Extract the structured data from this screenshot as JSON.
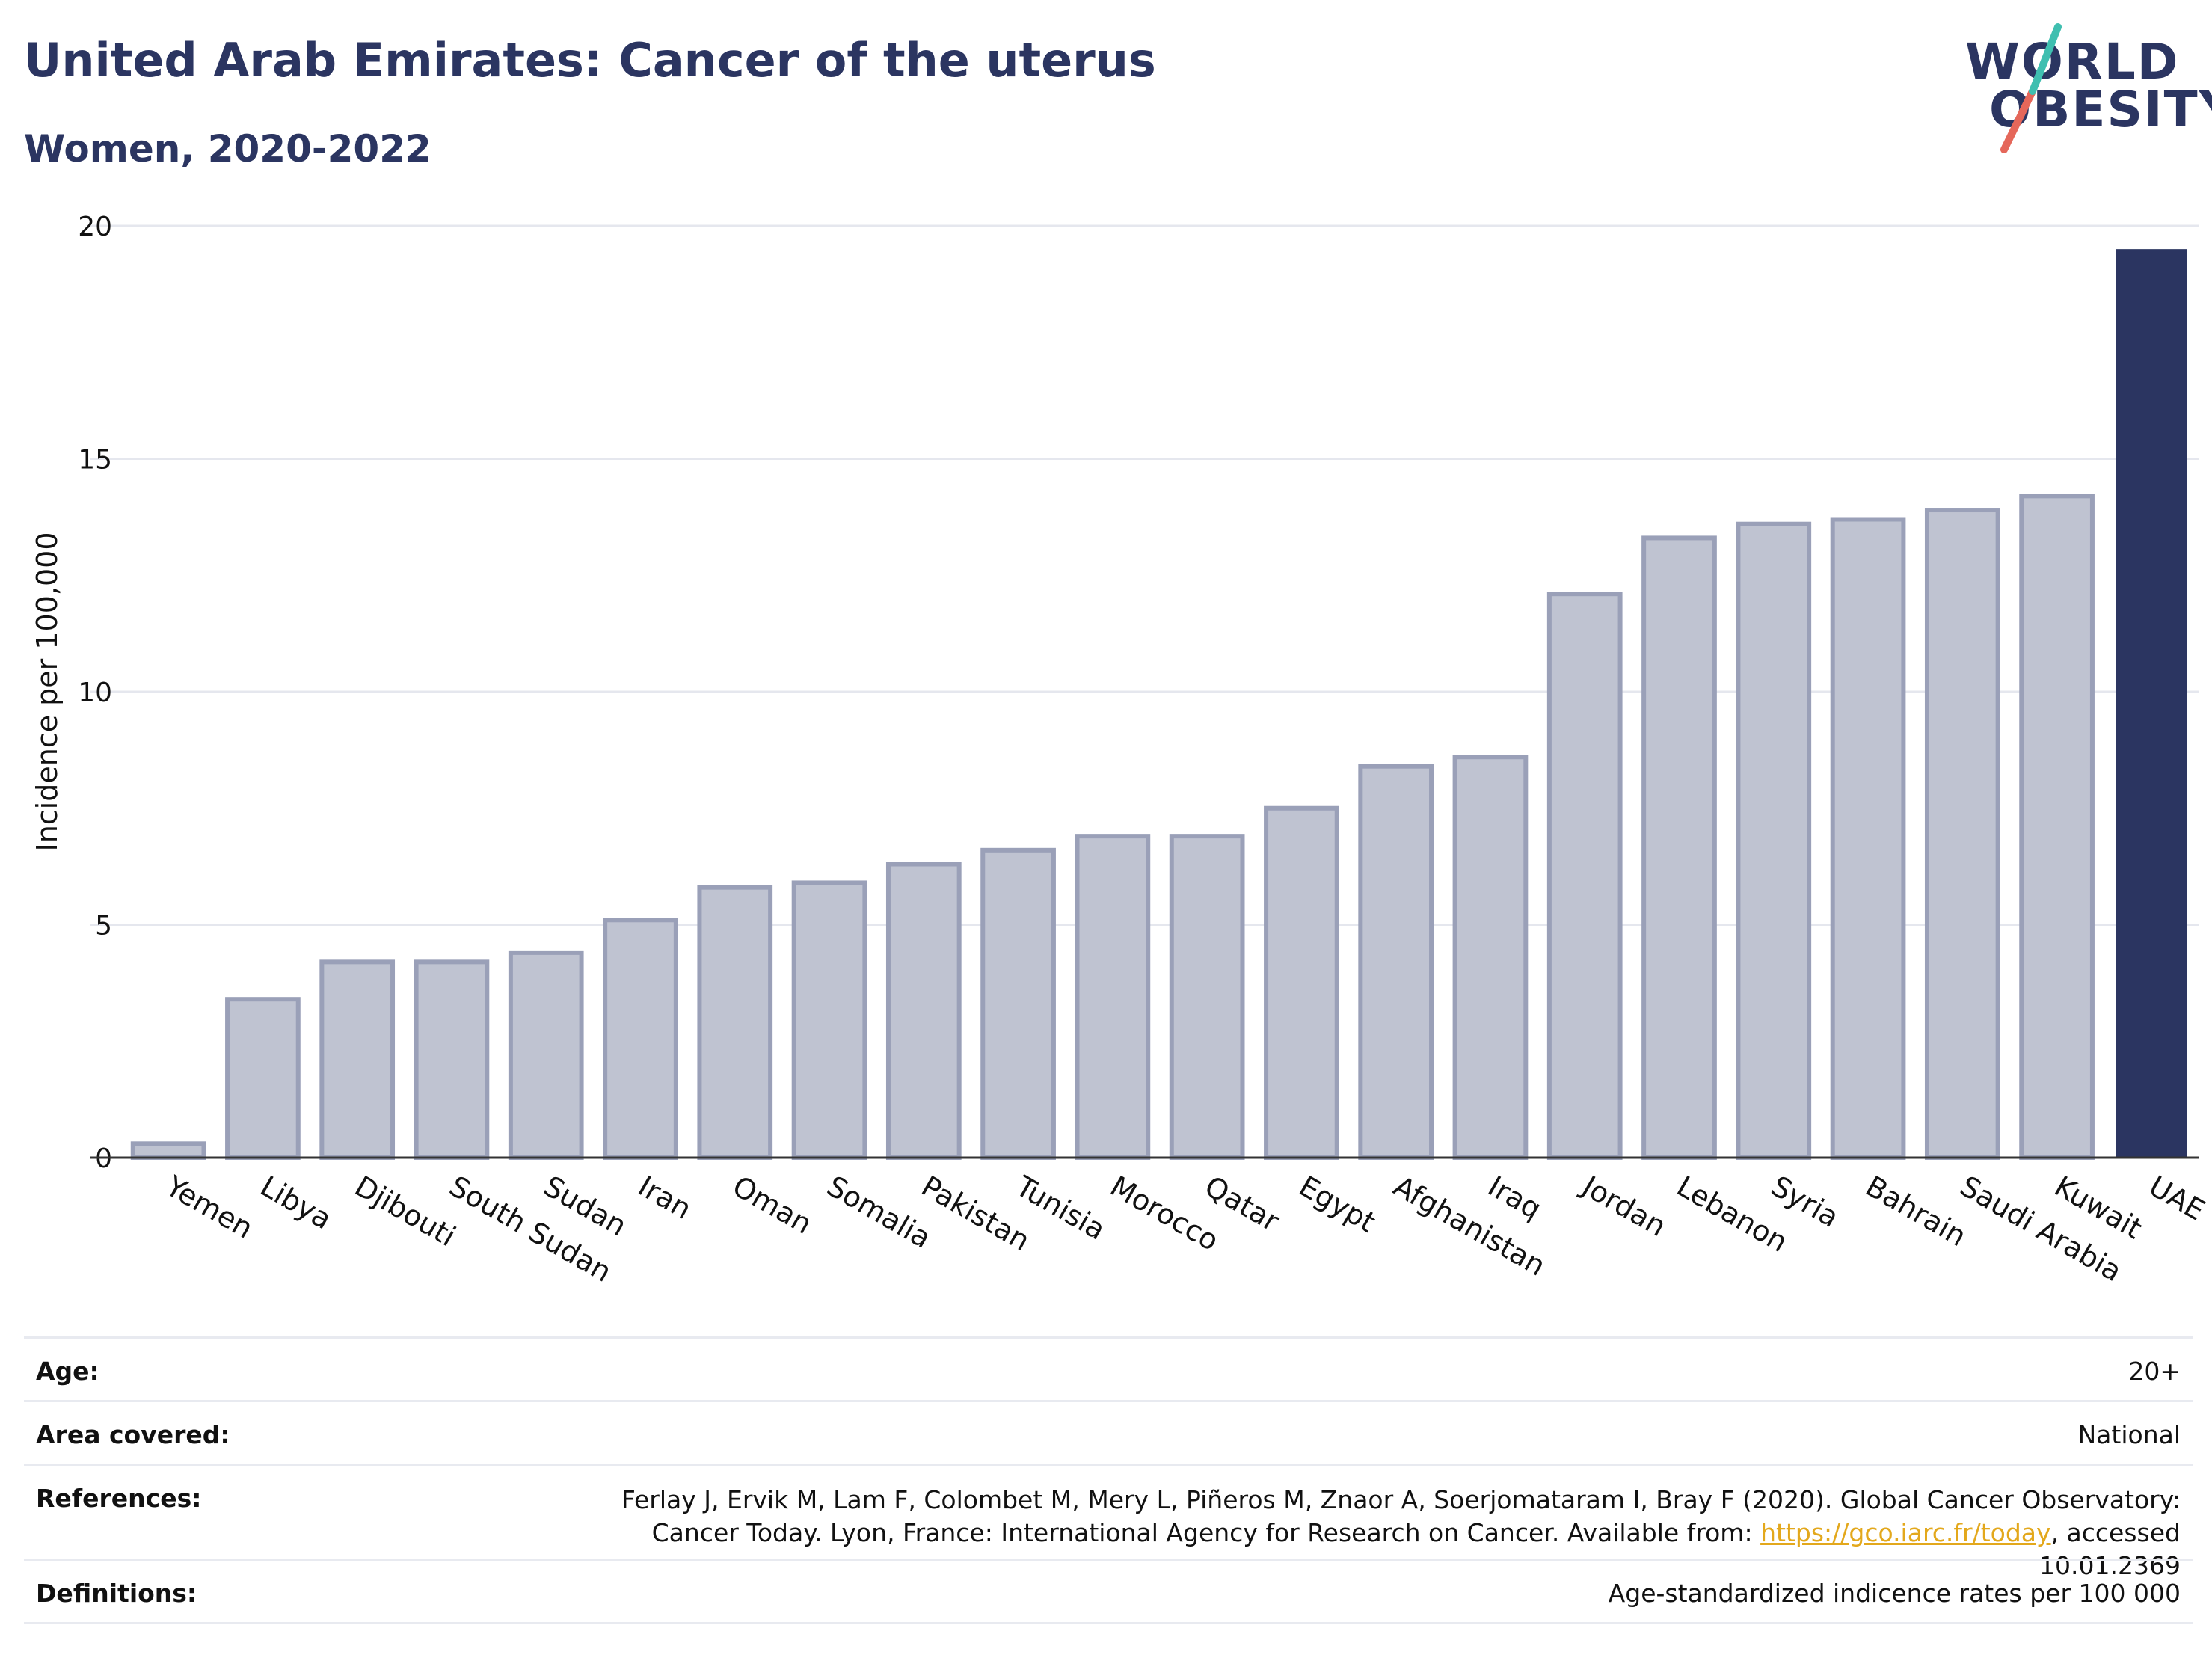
{
  "header": {
    "title": "United Arab Emirates: Cancer of the uterus",
    "subtitle": "Women, 2020-2022"
  },
  "logo": {
    "line1": "WORLD",
    "line2": "OBESITY"
  },
  "colors": {
    "bar": "#bfc3d1",
    "bar_stroke": "#9aa0b8",
    "highlight": "#2b3561",
    "title": "#2b3561",
    "grid": "#e5e7ee"
  },
  "chart_data": {
    "type": "bar",
    "title": "United Arab Emirates: Cancer of the uterus",
    "subtitle": "Women, 2020-2022",
    "xlabel": "",
    "ylabel": "Incidence per 100,000",
    "ylim": [
      0,
      20
    ],
    "yticks": [
      0,
      5,
      10,
      15,
      20
    ],
    "grid": true,
    "highlight": "UAE",
    "categories": [
      "Yemen",
      "Libya",
      "Djibouti",
      "South Sudan",
      "Sudan",
      "Iran",
      "Oman",
      "Somalia",
      "Pakistan",
      "Tunisia",
      "Morocco",
      "Qatar",
      "Egypt",
      "Afghanistan",
      "Iraq",
      "Jordan",
      "Lebanon",
      "Syria",
      "Bahrain",
      "Saudi Arabia",
      "Kuwait",
      "UAE"
    ],
    "values": [
      0.3,
      3.4,
      4.2,
      4.2,
      4.4,
      5.1,
      5.8,
      5.9,
      6.3,
      6.6,
      6.9,
      6.9,
      7.5,
      8.4,
      8.6,
      12.1,
      13.3,
      13.6,
      13.7,
      13.9,
      14.2,
      19.5
    ]
  },
  "footer": {
    "age_label": "Age:",
    "age_value": "20+",
    "area_label": "Area covered:",
    "area_value": "National",
    "references_label": "References:",
    "references_text1": "Ferlay J, Ervik M, Lam F, Colombet M, Mery L, Piñeros M, Znaor A, Soerjomataram I, Bray F (2020). Global Cancer Observatory: Cancer Today. Lyon, France: International Agency for Research on Cancer. Available from: ",
    "references_link": "https://gco.iarc.fr/today",
    "references_text2": ", accessed 10.01.2369",
    "definitions_label": "Definitions:",
    "definitions_value": "Age-standardized indicence rates per 100 000"
  }
}
